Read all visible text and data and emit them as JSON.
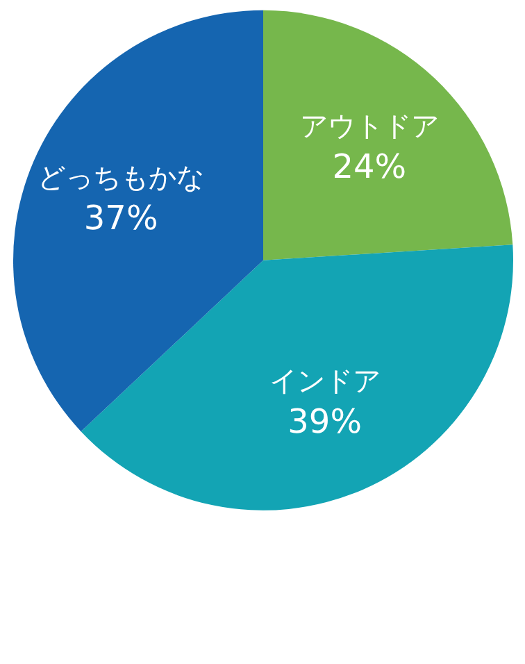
{
  "chart_data": {
    "type": "pie",
    "categories": [
      "アウトドア",
      "インドア",
      "どっちもかな"
    ],
    "values": [
      24,
      39,
      37
    ],
    "colors": [
      "#76b74c",
      "#13a4b4",
      "#1565b0"
    ],
    "value_labels": [
      "24%",
      "39%",
      "37%"
    ]
  }
}
